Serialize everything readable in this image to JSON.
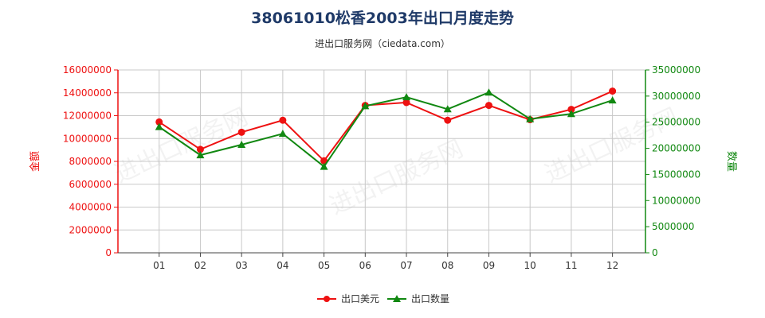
{
  "title": "38061010松香2003年出口月度走势",
  "subtitle": "进出口服务网（ciedata.com）",
  "watermark": "进出口服务网",
  "colors": {
    "amount": "#ee1111",
    "quantity": "#118811",
    "grid": "#c8c8c8",
    "axis": "#444444"
  },
  "chart_data": {
    "type": "line",
    "title": "38061010松香2003年出口月度走势",
    "categories": [
      "01",
      "02",
      "03",
      "04",
      "05",
      "06",
      "07",
      "08",
      "09",
      "10",
      "11",
      "12"
    ],
    "y_left": {
      "label": "金额",
      "ylim": [
        0,
        16000000
      ],
      "ticks": [
        "0",
        "2000000",
        "4000000",
        "6000000",
        "8000000",
        "10000000",
        "12000000",
        "14000000",
        "16000000"
      ]
    },
    "y_right": {
      "label": "数量",
      "ylim": [
        0,
        35000000
      ],
      "ticks": [
        "0",
        "5000000",
        "10000000",
        "15000000",
        "20000000",
        "25000000",
        "30000000",
        "35000000"
      ]
    },
    "series": [
      {
        "name": "出口美元",
        "axis": "left",
        "color": "#ee1111",
        "values": [
          11450000,
          9050000,
          10550000,
          11600000,
          8050000,
          12900000,
          13150000,
          11600000,
          12900000,
          11650000,
          12550000,
          14150000
        ]
      },
      {
        "name": "出口数量",
        "axis": "right",
        "color": "#118811",
        "values": [
          24100000,
          18700000,
          20700000,
          22800000,
          16500000,
          28100000,
          29800000,
          27500000,
          30700000,
          25600000,
          26600000,
          29200000
        ]
      }
    ],
    "grid": true,
    "legend": "bottom-center"
  }
}
